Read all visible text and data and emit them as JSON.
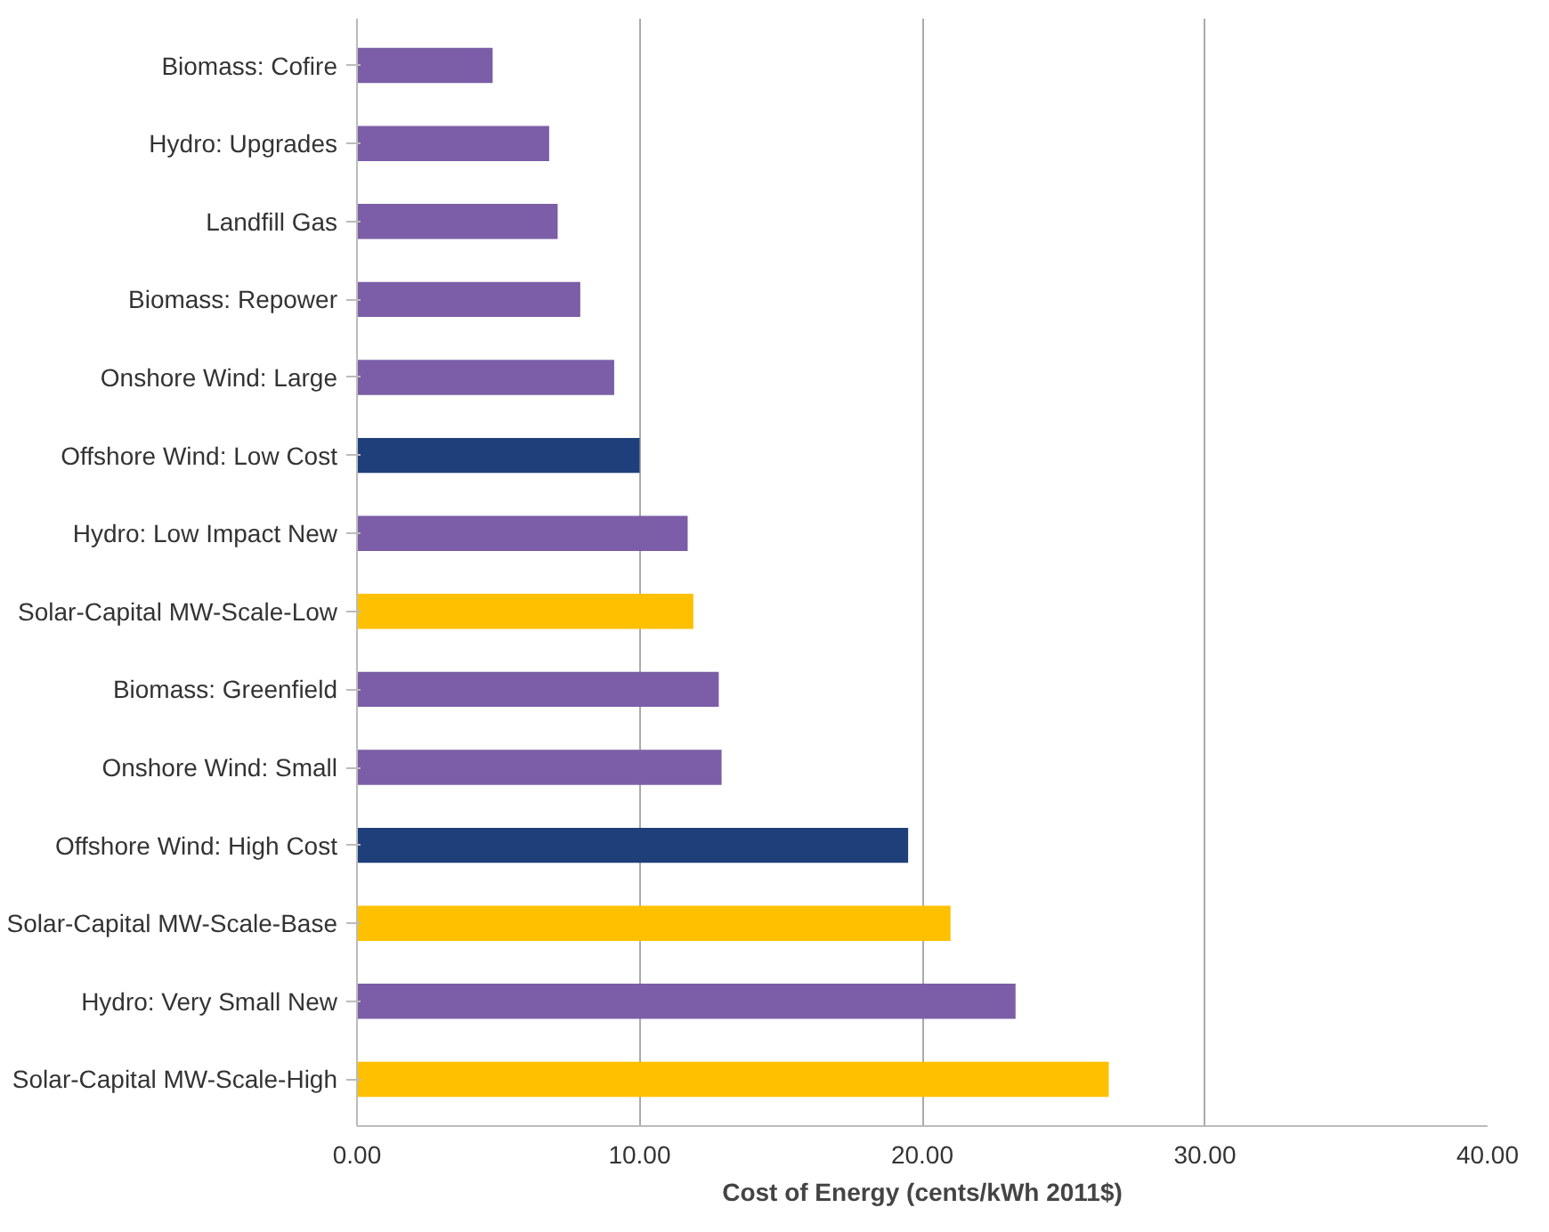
{
  "chart_data": {
    "type": "bar",
    "orientation": "horizontal",
    "xlabel": "Cost of Energy (cents/kWh 2011$)",
    "categories": [
      "Biomass: Cofire",
      "Hydro: Upgrades",
      "Landfill Gas",
      "Biomass: Repower",
      "Onshore Wind: Large",
      "Offshore Wind: Low Cost",
      "Hydro: Low Impact New",
      "Solar-Capital MW-Scale-Low",
      "Biomass: Greenfield",
      "Onshore Wind: Small",
      "Offshore Wind: High Cost",
      "Solar-Capital MW-Scale-Base",
      "Hydro: Very Small New",
      "Solar-Capital MW-Scale-High"
    ],
    "values": [
      4.8,
      6.8,
      7.1,
      7.9,
      9.1,
      10.0,
      11.7,
      11.9,
      12.8,
      12.9,
      19.5,
      21.0,
      23.3,
      26.6
    ],
    "colors": [
      "#7b5ea7",
      "#7b5ea7",
      "#7b5ea7",
      "#7b5ea7",
      "#7b5ea7",
      "#1f3f7a",
      "#7b5ea7",
      "#ffc000",
      "#7b5ea7",
      "#7b5ea7",
      "#1f3f7a",
      "#ffc000",
      "#7b5ea7",
      "#ffc000"
    ],
    "xlim": [
      0,
      40
    ],
    "xticks": [
      {
        "value": 0,
        "label": "0.00"
      },
      {
        "value": 10,
        "label": "10.00"
      },
      {
        "value": 20,
        "label": "20.00"
      },
      {
        "value": 30,
        "label": "30.00"
      },
      {
        "value": 40,
        "label": "40.00"
      }
    ],
    "grid": "x"
  }
}
